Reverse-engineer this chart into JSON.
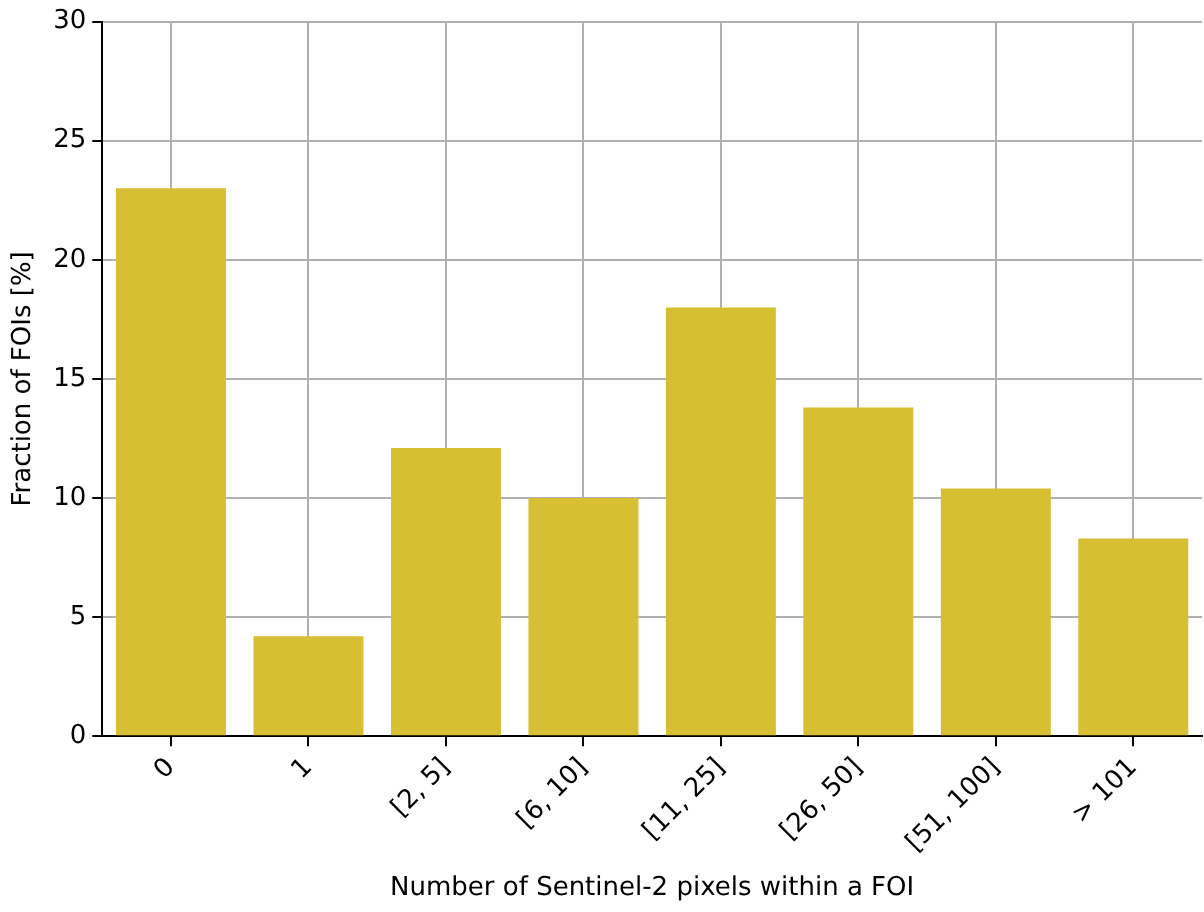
{
  "chart_data": {
    "type": "bar",
    "xlabel": "Number of Sentinel-2 pixels within a FOI",
    "ylabel": "Fraction of FOIs [%]",
    "categories": [
      "0",
      "1",
      "[2, 5]",
      "[6, 10]",
      "[11, 25]",
      "[26, 50]",
      "[51, 100]",
      "> 101"
    ],
    "values": [
      23.0,
      4.2,
      12.1,
      10.0,
      18.0,
      13.8,
      10.4,
      8.3
    ],
    "color": "#d6bf33",
    "ylim": [
      0,
      30
    ],
    "yticks": [
      0,
      5,
      10,
      15,
      20,
      25,
      30
    ],
    "grid": true
  }
}
